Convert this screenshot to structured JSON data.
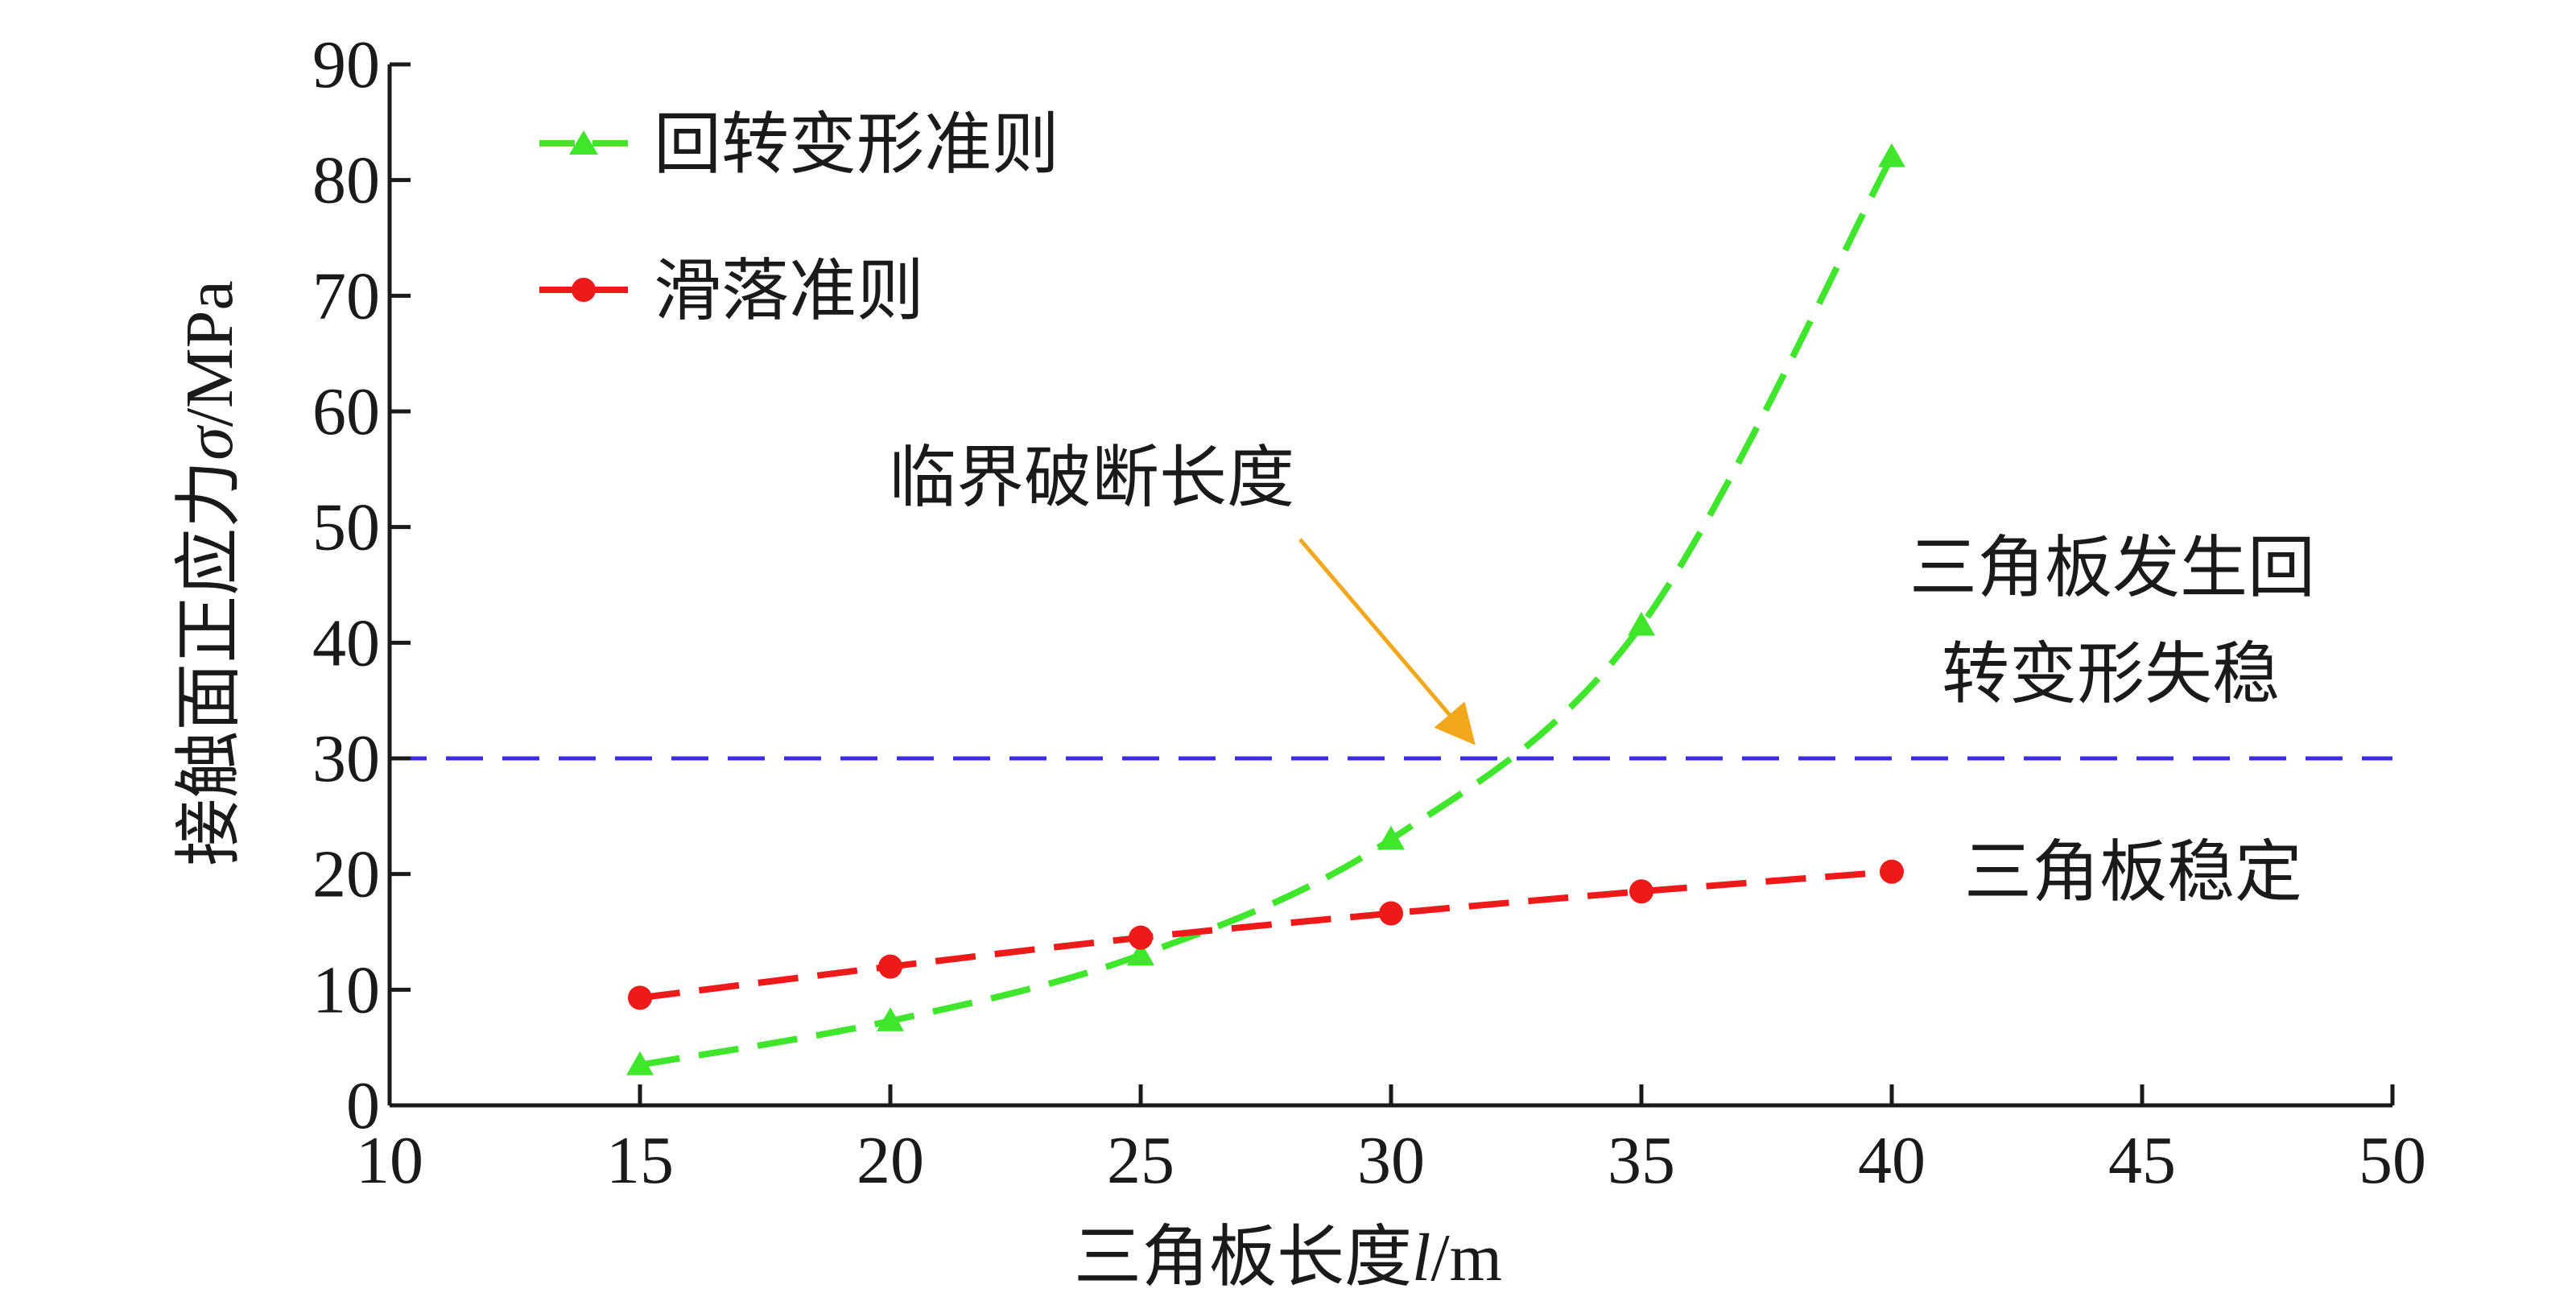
{
  "chart_data": {
    "type": "line",
    "xlabel": {
      "prefix": "三角板长度",
      "var": "l",
      "unit": "/m"
    },
    "ylabel": {
      "prefix": "接触面正应力",
      "var": "σ",
      "unit": "/MPa"
    },
    "xlim": [
      10,
      50
    ],
    "ylim": [
      0,
      90
    ],
    "xticks": [
      10,
      15,
      20,
      25,
      30,
      35,
      40,
      45,
      50
    ],
    "yticks": [
      0,
      10,
      20,
      30,
      40,
      50,
      60,
      70,
      80,
      90
    ],
    "grid": false,
    "legend_position": "top-left",
    "series": [
      {
        "name": "回转变形准则",
        "color": "#3fe62b",
        "marker": "triangle",
        "line": "dashed",
        "x": [
          15,
          20,
          25,
          30,
          35,
          40
        ],
        "y": [
          3.5,
          7.3,
          13.0,
          23.0,
          41.5,
          82.0
        ]
      },
      {
        "name": "滑落准则",
        "color": "#ee1a1a",
        "marker": "circle",
        "line": "dashed",
        "x": [
          15,
          20,
          25,
          30,
          35,
          40
        ],
        "y": [
          9.3,
          12.0,
          14.5,
          16.6,
          18.5,
          20.2
        ]
      }
    ],
    "reference_lines": [
      {
        "y": 30,
        "color": "#3a2be6",
        "line": "dashed"
      }
    ],
    "annotations": {
      "critical": {
        "text": "临界破断长度",
        "arrow_color": "#f2a81d",
        "arrow_to": {
          "x": 32.0,
          "y": 30
        }
      },
      "unstable": {
        "lines": [
          "三角板发生回",
          "转变形失稳"
        ]
      },
      "stable": {
        "text": "三角板稳定"
      }
    }
  }
}
